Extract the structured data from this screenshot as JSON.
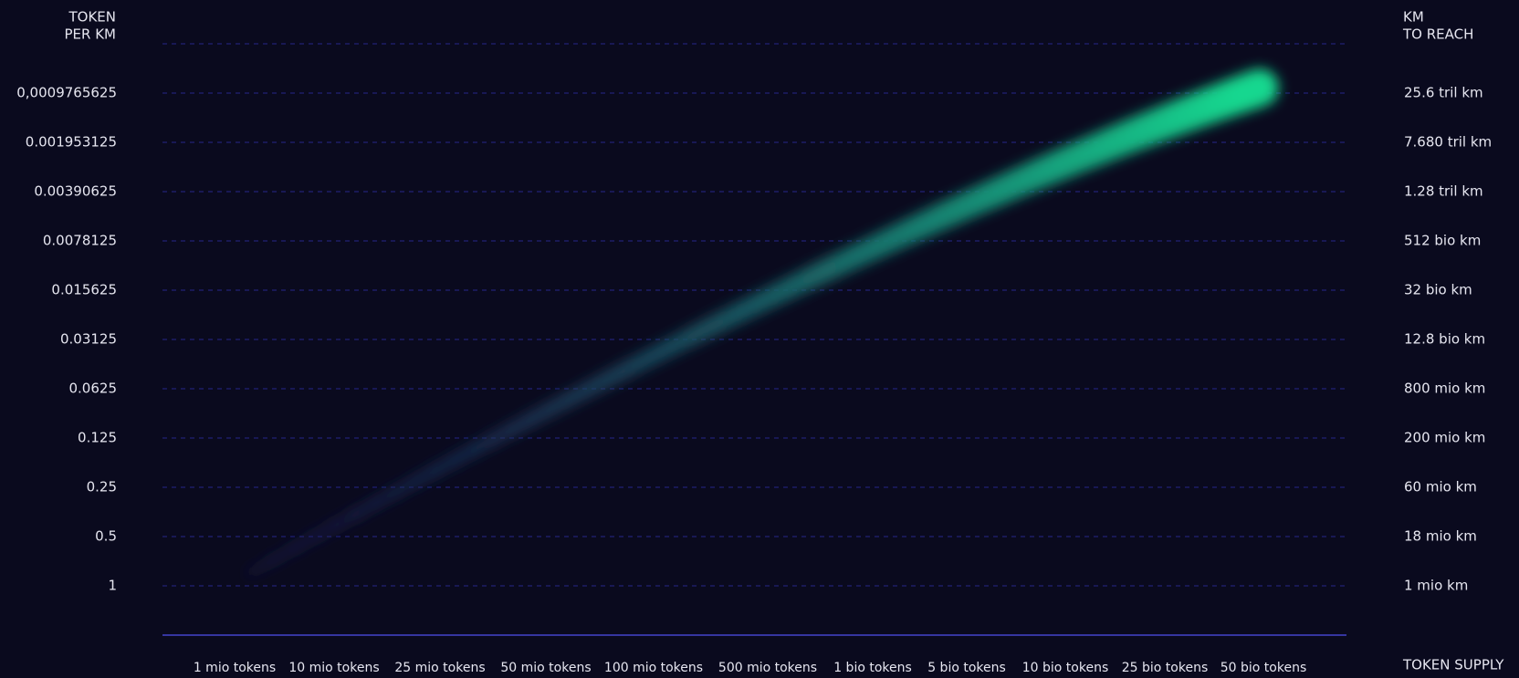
{
  "left_axis": {
    "title_lines": [
      "TOKEN",
      "PER KM"
    ],
    "labels": [
      "0,0009765625",
      "0.001953125",
      "0.00390625",
      "0.0078125",
      "0.015625",
      "0.03125",
      "0.0625",
      "0.125",
      "0.25",
      "0.5",
      "1"
    ]
  },
  "right_axis": {
    "title_lines": [
      "KM",
      "TO REACH"
    ],
    "labels": [
      "25.6 tril km",
      "7.680 tril km",
      "1.28 tril km",
      "512 bio km",
      "32 bio km",
      "12.8 bio km",
      "800 mio km",
      "200 mio km",
      "60 mio km",
      "18 mio km",
      "1 mio km"
    ]
  },
  "x_axis": {
    "title": "TOKEN SUPPLY",
    "labels": [
      "1 mio tokens",
      "10 mio tokens",
      "25 mio tokens",
      "50 mio tokens",
      "100 mio tokens",
      "500 mio tokens",
      "1 bio tokens",
      "5 bio tokens",
      "10 bio tokens",
      "25 bio tokens",
      "50 bio tokens"
    ]
  }
}
